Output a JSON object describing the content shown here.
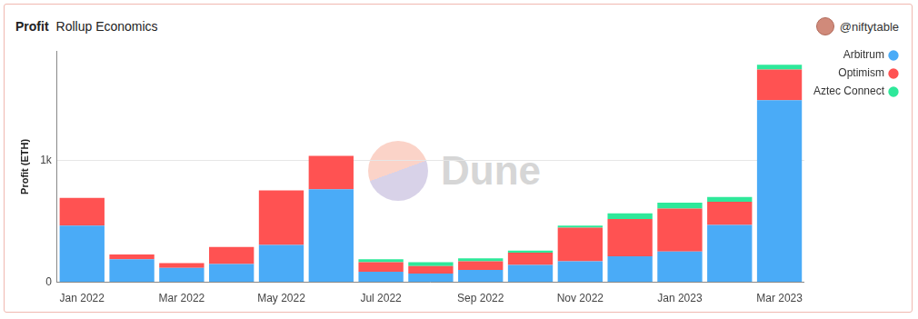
{
  "chart_data": {
    "type": "bar",
    "title": "Profit",
    "subtitle": "Rollup Economics",
    "annotations": [
      "@niftytable",
      "Dune"
    ],
    "y_label": "Profit (ETH)",
    "categories": [
      "Jan 2022",
      null,
      "Mar 2022",
      null,
      "May 2022",
      null,
      "Jul 2022",
      null,
      "Sep 2022",
      null,
      "Nov 2022",
      null,
      "Jan 2023",
      null,
      "Mar 2023"
    ],
    "series": [
      {
        "name": "Arbitrum",
        "color": "#4aabf7",
        "values": [
          465,
          189,
          118,
          150,
          307,
          764,
          87,
          71,
          102,
          142,
          173,
          213,
          252,
          472,
          1496
        ]
      },
      {
        "name": "Optimism",
        "color": "#ff5252",
        "values": [
          228,
          39,
          39,
          141,
          449,
          275,
          78,
          63,
          71,
          102,
          276,
          307,
          354,
          189,
          252
        ]
      },
      {
        "name": "Aztec Connect",
        "color": "#2ee89a",
        "values": [
          0,
          0,
          0,
          0,
          0,
          0,
          24,
          31,
          24,
          16,
          16,
          47,
          48,
          40,
          39
        ]
      }
    ],
    "stacked": true,
    "ylim": [
      0,
      1900
    ],
    "yticks": [
      0,
      {
        "value": 1000,
        "label": "1k"
      }
    ],
    "grid": true,
    "legend": "right"
  }
}
